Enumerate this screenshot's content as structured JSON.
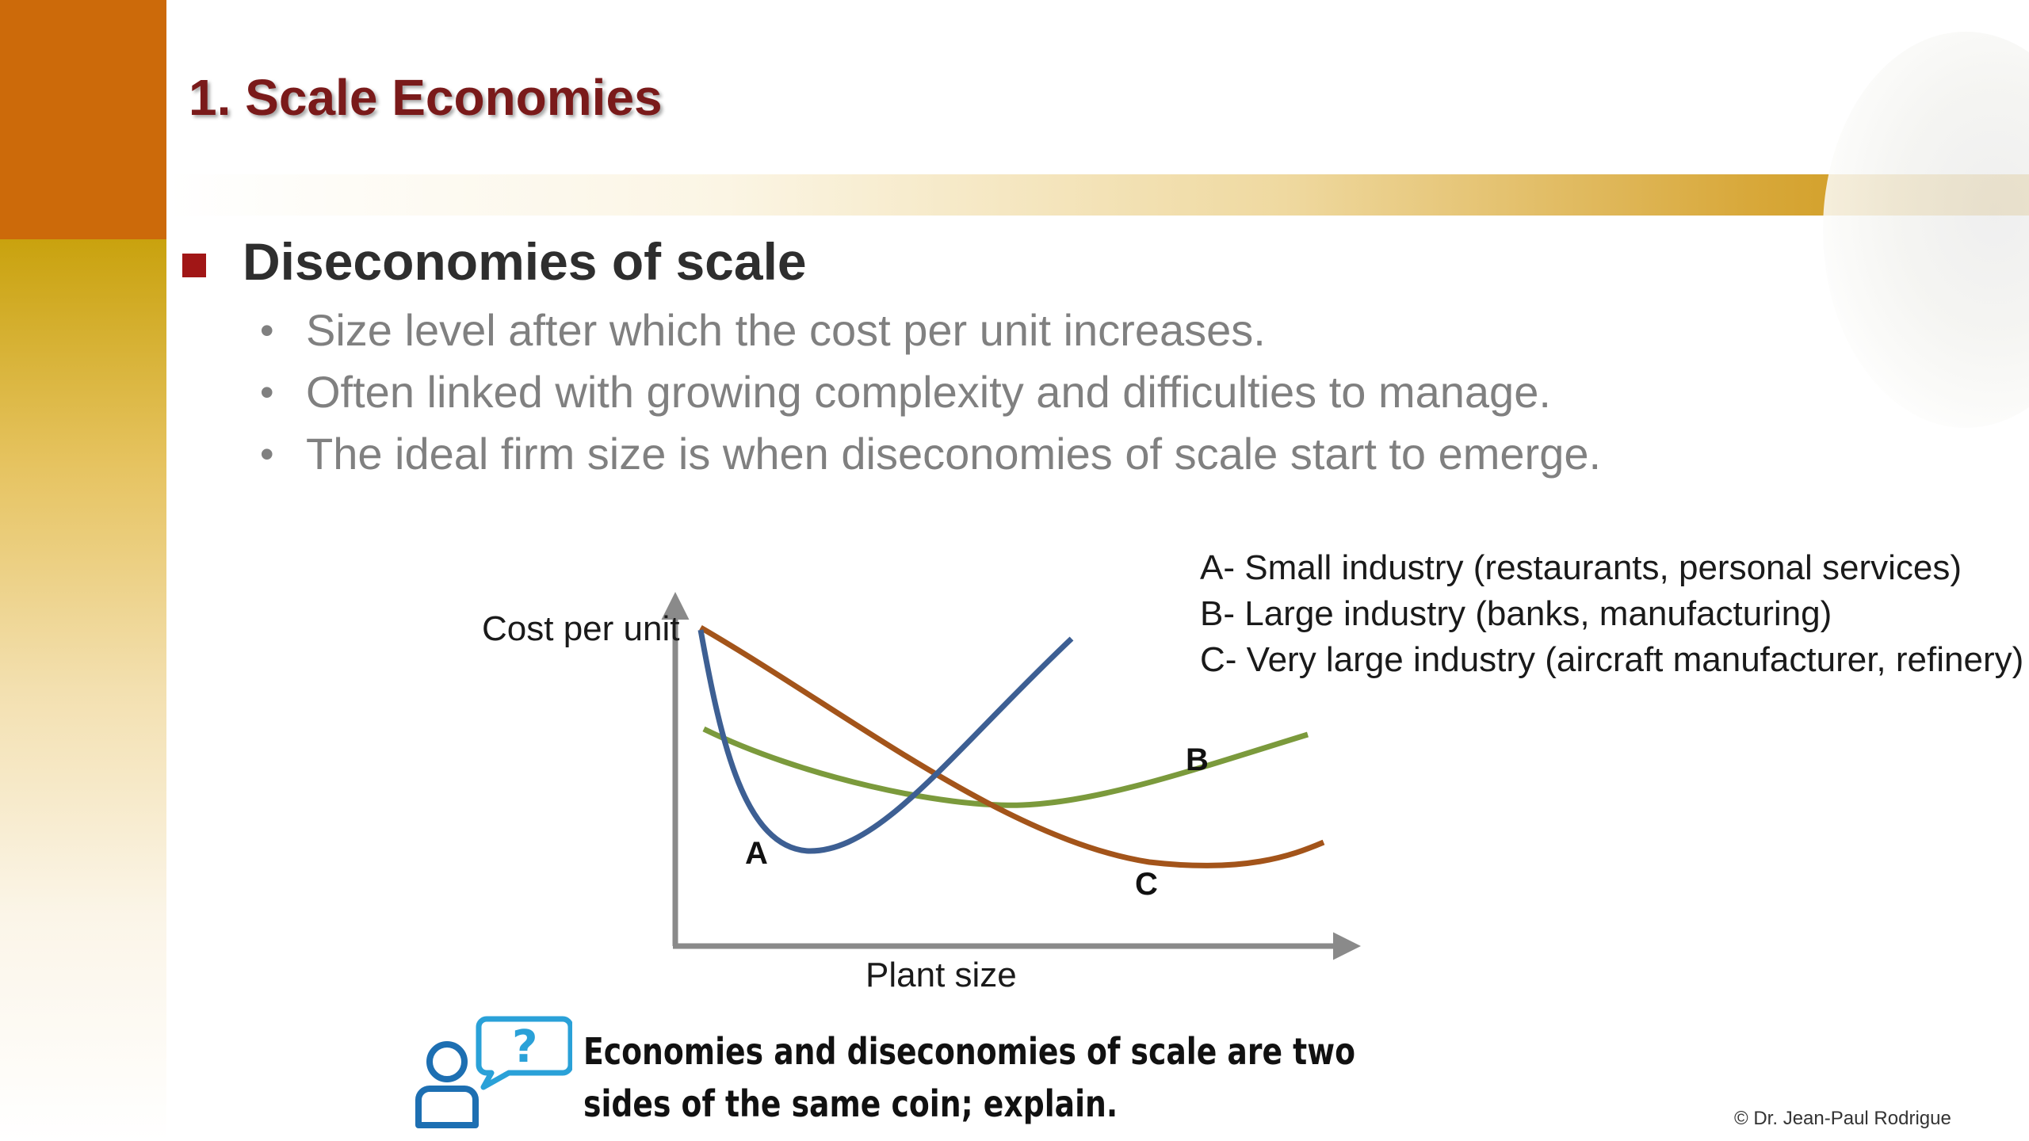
{
  "slide": {
    "title": "1. Scale Economies",
    "main_bullet": "Diseconomies of scale",
    "sub_bullets": [
      "Size level after which the cost per unit increases.",
      "Often linked with growing complexity and difficulties to manage.",
      "The ideal firm size is when diseconomies of scale start to emerge."
    ],
    "legend": [
      "A- Small industry (restaurants, personal services)",
      "B- Large industry (banks, manufacturing)",
      "C- Very large industry (aircraft manufacturer, refinery)"
    ],
    "question": "Economies and diseconomies of scale are two sides of the same coin; explain.",
    "copyright": "© Dr. Jean-Paul Rodrigue"
  },
  "diagram": {
    "ylabel": "Cost per unit",
    "xlabel": "Plant size",
    "curve_labels": {
      "a": "A",
      "b": "B",
      "c": "C"
    },
    "colors": {
      "a": "#3d5f93",
      "b": "#7b9a3c",
      "c": "#a3541a",
      "axis": "#8a8a8a"
    }
  },
  "theme": {
    "title_color": "#7a1a1a",
    "accent_orange": "#cc6a0a",
    "accent_gold": "#c9a20e",
    "bullet_square": "#a11616"
  }
}
